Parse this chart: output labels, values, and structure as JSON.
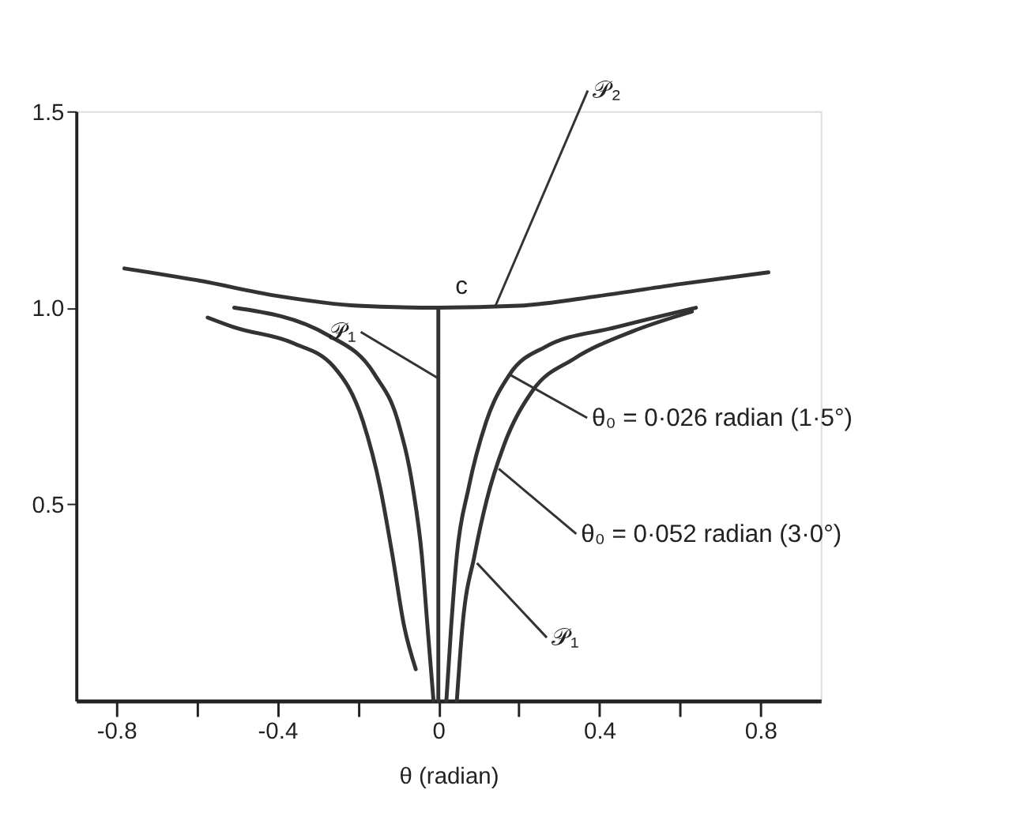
{
  "chart_data": {
    "type": "line",
    "xlabel": "θ (radian)",
    "xlim": [
      -0.9,
      0.95
    ],
    "ylim": [
      0,
      1.5
    ],
    "xticks": [
      -0.8,
      {
        "value": -0.6,
        "label": null
      },
      -0.4,
      {
        "value": -0.2,
        "label": null
      },
      0,
      {
        "value": 0.2,
        "label": null
      },
      0.4,
      {
        "value": 0.6,
        "label": null
      },
      0.8
    ],
    "yticks": [
      0.5,
      {
        "value": 1.0,
        "label": "1.0"
      },
      1.5
    ],
    "grid": false,
    "marker": "none",
    "line_style": "solid",
    "series": [
      {
        "color": "#333333",
        "x": [
          -0.78,
          -0.6,
          -0.4,
          -0.2,
          0,
          0.2,
          0.4,
          0.6,
          0.82
        ],
        "values": [
          1.1,
          1.07,
          1.03,
          1.005,
          1.0,
          1.005,
          1.03,
          1.06,
          1.09
        ]
      },
      {
        "color": "#333333",
        "x": [
          0,
          0
        ],
        "values": [
          0,
          1.0
        ]
      },
      {
        "color": "#333333",
        "x": [
          0.02,
          0.032,
          0.046,
          0.075,
          0.119,
          0.177,
          0.265,
          0.44,
          0.64
        ],
        "values": [
          0,
          0.19,
          0.37,
          0.54,
          0.71,
          0.83,
          0.9,
          0.95,
          1.0
        ]
      },
      {
        "color": "#333333",
        "x": [
          0.046,
          0.06,
          0.09,
          0.12,
          0.163,
          0.235,
          0.337,
          0.483,
          0.63
        ],
        "values": [
          0,
          0.19,
          0.37,
          0.51,
          0.65,
          0.79,
          0.87,
          0.94,
          0.99
        ]
      },
      {
        "color": "#333333",
        "x": [
          -0.012,
          -0.027,
          -0.041,
          -0.063,
          -0.1,
          -0.158,
          -0.274,
          -0.507
        ],
        "values": [
          0,
          0.19,
          0.37,
          0.54,
          0.71,
          0.83,
          0.93,
          1.0
        ]
      },
      {
        "color": "#333333",
        "x": [
          -0.056,
          -0.085,
          -0.114,
          -0.144,
          -0.187,
          -0.26,
          -0.361,
          -0.507,
          -0.573
        ],
        "values": [
          0.08,
          0.19,
          0.37,
          0.54,
          0.71,
          0.85,
          0.91,
          0.95,
          0.975
        ]
      }
    ],
    "annotations": [
      {
        "text": "𝒫₂",
        "x": 0.14,
        "y": 1.0
      },
      {
        "text": "c",
        "x": 0,
        "y": 1.0
      },
      {
        "text": "𝒫₁",
        "x": 0,
        "y": 0.82
      },
      {
        "text": "θ₀ = 0·026 radian (1·5°)",
        "x": 0.177,
        "y": 0.83
      },
      {
        "text": "θ₀ = 0·052 radian (3·0°)",
        "x": 0.15,
        "y": 0.59
      },
      {
        "text": "𝒫₁",
        "x": 0.096,
        "y": 0.35
      }
    ]
  }
}
